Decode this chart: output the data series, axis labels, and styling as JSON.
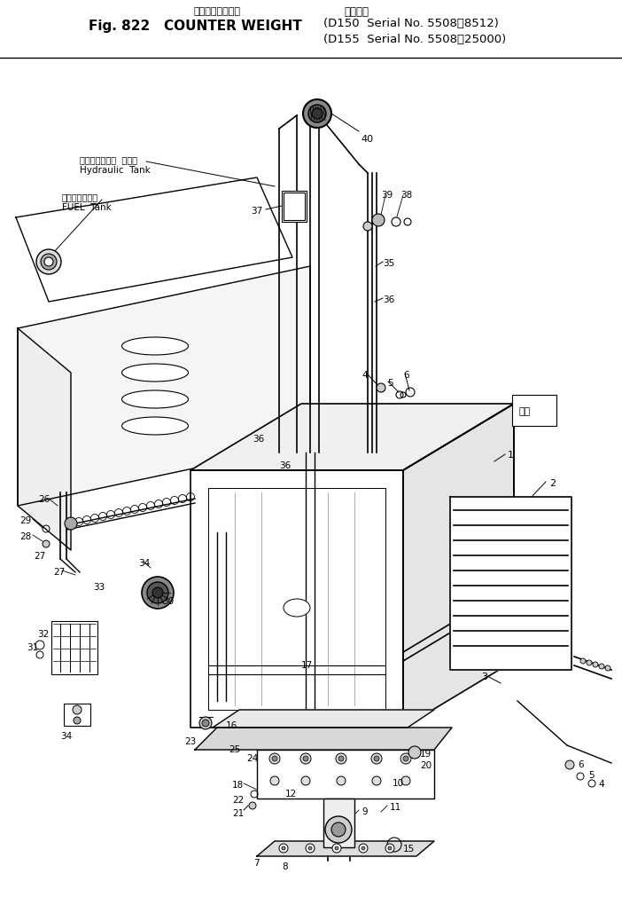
{
  "bg_color": "#ffffff",
  "line_color": "#000000",
  "title_jp": "カウンタウエイト",
  "title_en": "Fig. 822   COUNTER WEIGHT",
  "title_label_jp": "適用号機",
  "title_right1": "(D150  Serial No. 5508～8512)",
  "title_right2": "(D155  Serial No. 5508～25000)",
  "hydraulic_jp": "ハイドロリック  タンク",
  "hydraulic_en": "Hydraulic  Tank",
  "fuel_jp": "フェエルタンク",
  "fuel_en": "FUEL  Tank",
  "zenpo": "前方"
}
